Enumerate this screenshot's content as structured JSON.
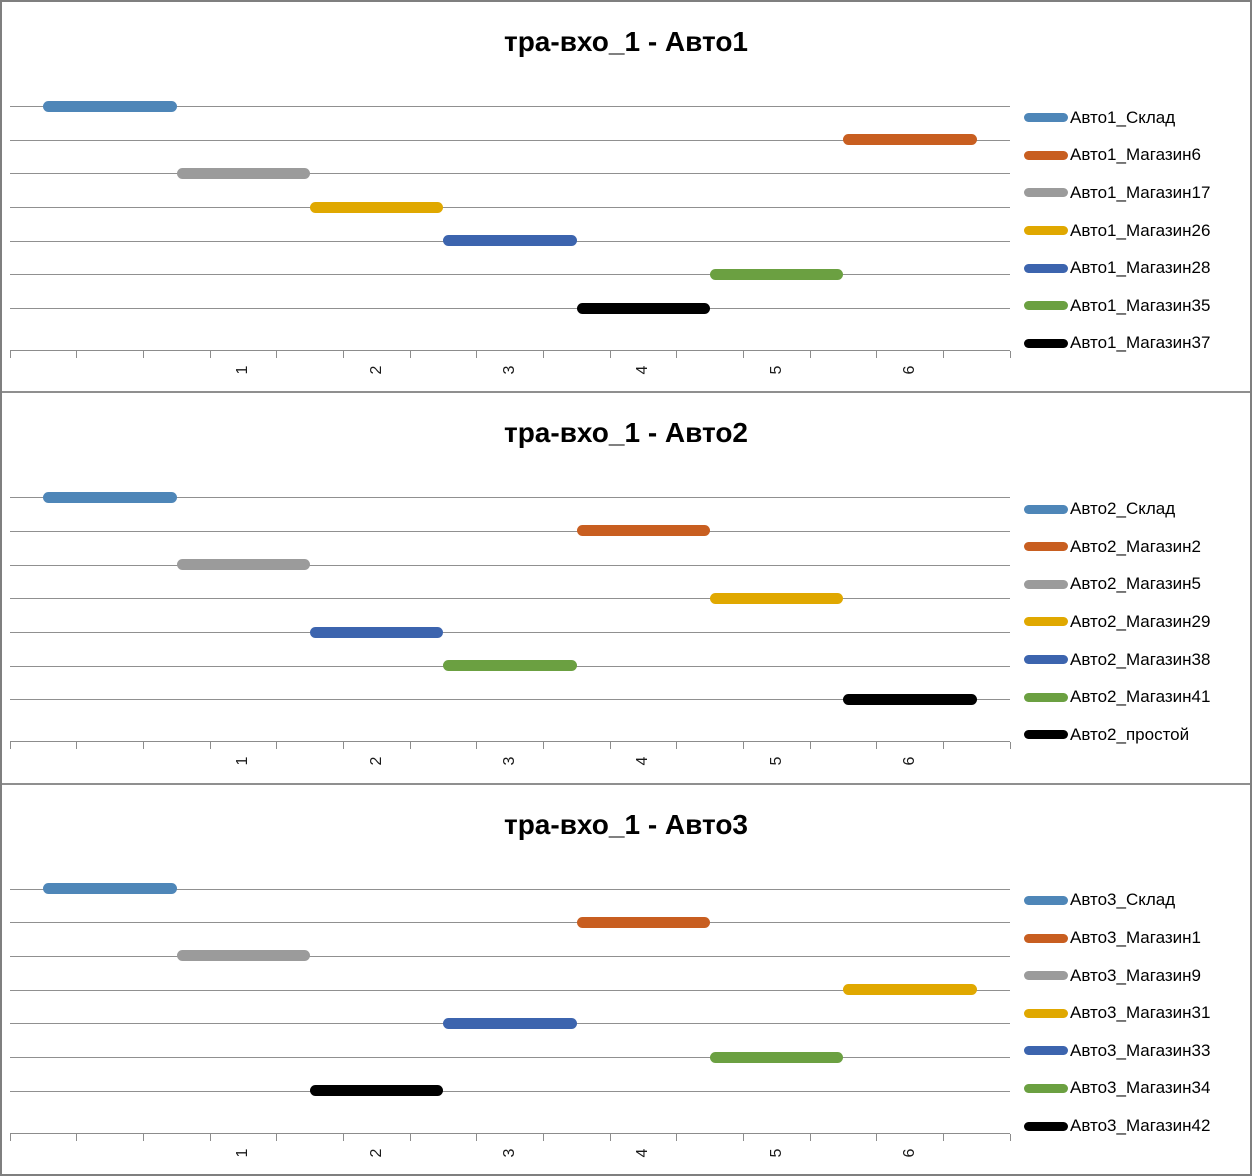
{
  "figure": {
    "background": "#ffffff",
    "border_color": "#7f7f7f",
    "gridline_color": "#909090",
    "axis_line_color": "#8c8c8c",
    "tick_label_color": "#1a1a1a",
    "title_color": "#000000"
  },
  "chart_data": [
    {
      "type": "bar",
      "subtype": "gantt-horizontal",
      "title": "тра-вхо_1 - Авто1",
      "xlabel": "",
      "ylabel": "",
      "x_tick_labels": [
        "1",
        "2",
        "3",
        "4",
        "5",
        "6"
      ],
      "x_axis_display_range": [
        -0.75,
        6.75
      ],
      "x_minor_tick_step": 0.5,
      "bar_display_offset": -0.5,
      "grid": "horizontal",
      "legend_position": "right",
      "series": [
        {
          "name": "Авто1_Склад",
          "color": "#4e86b8",
          "start": 0,
          "end": 1
        },
        {
          "name": "Авто1_Магазин6",
          "color": "#c85e20",
          "start": 6,
          "end": 7
        },
        {
          "name": "Авто1_Магазин17",
          "color": "#9b9b9b",
          "start": 1,
          "end": 2
        },
        {
          "name": "Авто1_Магазин26",
          "color": "#e0a800",
          "start": 2,
          "end": 3
        },
        {
          "name": "Авто1_Магазин28",
          "color": "#3c64ae",
          "start": 3,
          "end": 4
        },
        {
          "name": "Авто1_Магазин35",
          "color": "#6ba041",
          "start": 5,
          "end": 6
        },
        {
          "name": "Авто1_Магазин37",
          "color": "#000000",
          "start": 4,
          "end": 5
        }
      ]
    },
    {
      "type": "bar",
      "subtype": "gantt-horizontal",
      "title": "тра-вхо_1 - Авто2",
      "xlabel": "",
      "ylabel": "",
      "x_tick_labels": [
        "1",
        "2",
        "3",
        "4",
        "5",
        "6"
      ],
      "x_axis_display_range": [
        -0.75,
        6.75
      ],
      "x_minor_tick_step": 0.5,
      "bar_display_offset": -0.5,
      "grid": "horizontal",
      "legend_position": "right",
      "series": [
        {
          "name": "Авто2_Склад",
          "color": "#4e86b8",
          "start": 0,
          "end": 1
        },
        {
          "name": "Авто2_Магазин2",
          "color": "#c85e20",
          "start": 4,
          "end": 5
        },
        {
          "name": "Авто2_Магазин5",
          "color": "#9b9b9b",
          "start": 1,
          "end": 2
        },
        {
          "name": "Авто2_Магазин29",
          "color": "#e0a800",
          "start": 5,
          "end": 6
        },
        {
          "name": "Авто2_Магазин38",
          "color": "#3c64ae",
          "start": 2,
          "end": 3
        },
        {
          "name": "Авто2_Магазин41",
          "color": "#6ba041",
          "start": 3,
          "end": 4
        },
        {
          "name": "Авто2_простой",
          "color": "#000000",
          "start": 6,
          "end": 7
        }
      ]
    },
    {
      "type": "bar",
      "subtype": "gantt-horizontal",
      "title": "тра-вхо_1 - Авто3",
      "xlabel": "",
      "ylabel": "",
      "x_tick_labels": [
        "1",
        "2",
        "3",
        "4",
        "5",
        "6"
      ],
      "x_axis_display_range": [
        -0.75,
        6.75
      ],
      "x_minor_tick_step": 0.5,
      "bar_display_offset": -0.5,
      "grid": "horizontal",
      "legend_position": "right",
      "series": [
        {
          "name": "Авто3_Склад",
          "color": "#4e86b8",
          "start": 0,
          "end": 1
        },
        {
          "name": "Авто3_Магазин1",
          "color": "#c85e20",
          "start": 4,
          "end": 5
        },
        {
          "name": "Авто3_Магазин9",
          "color": "#9b9b9b",
          "start": 1,
          "end": 2
        },
        {
          "name": "Авто3_Магазин31",
          "color": "#e0a800",
          "start": 6,
          "end": 7
        },
        {
          "name": "Авто3_Магазин33",
          "color": "#3c64ae",
          "start": 3,
          "end": 4
        },
        {
          "name": "Авто3_Магазин34",
          "color": "#6ba041",
          "start": 5,
          "end": 6
        },
        {
          "name": "Авто3_Магазин42",
          "color": "#000000",
          "start": 2,
          "end": 3
        }
      ]
    }
  ]
}
